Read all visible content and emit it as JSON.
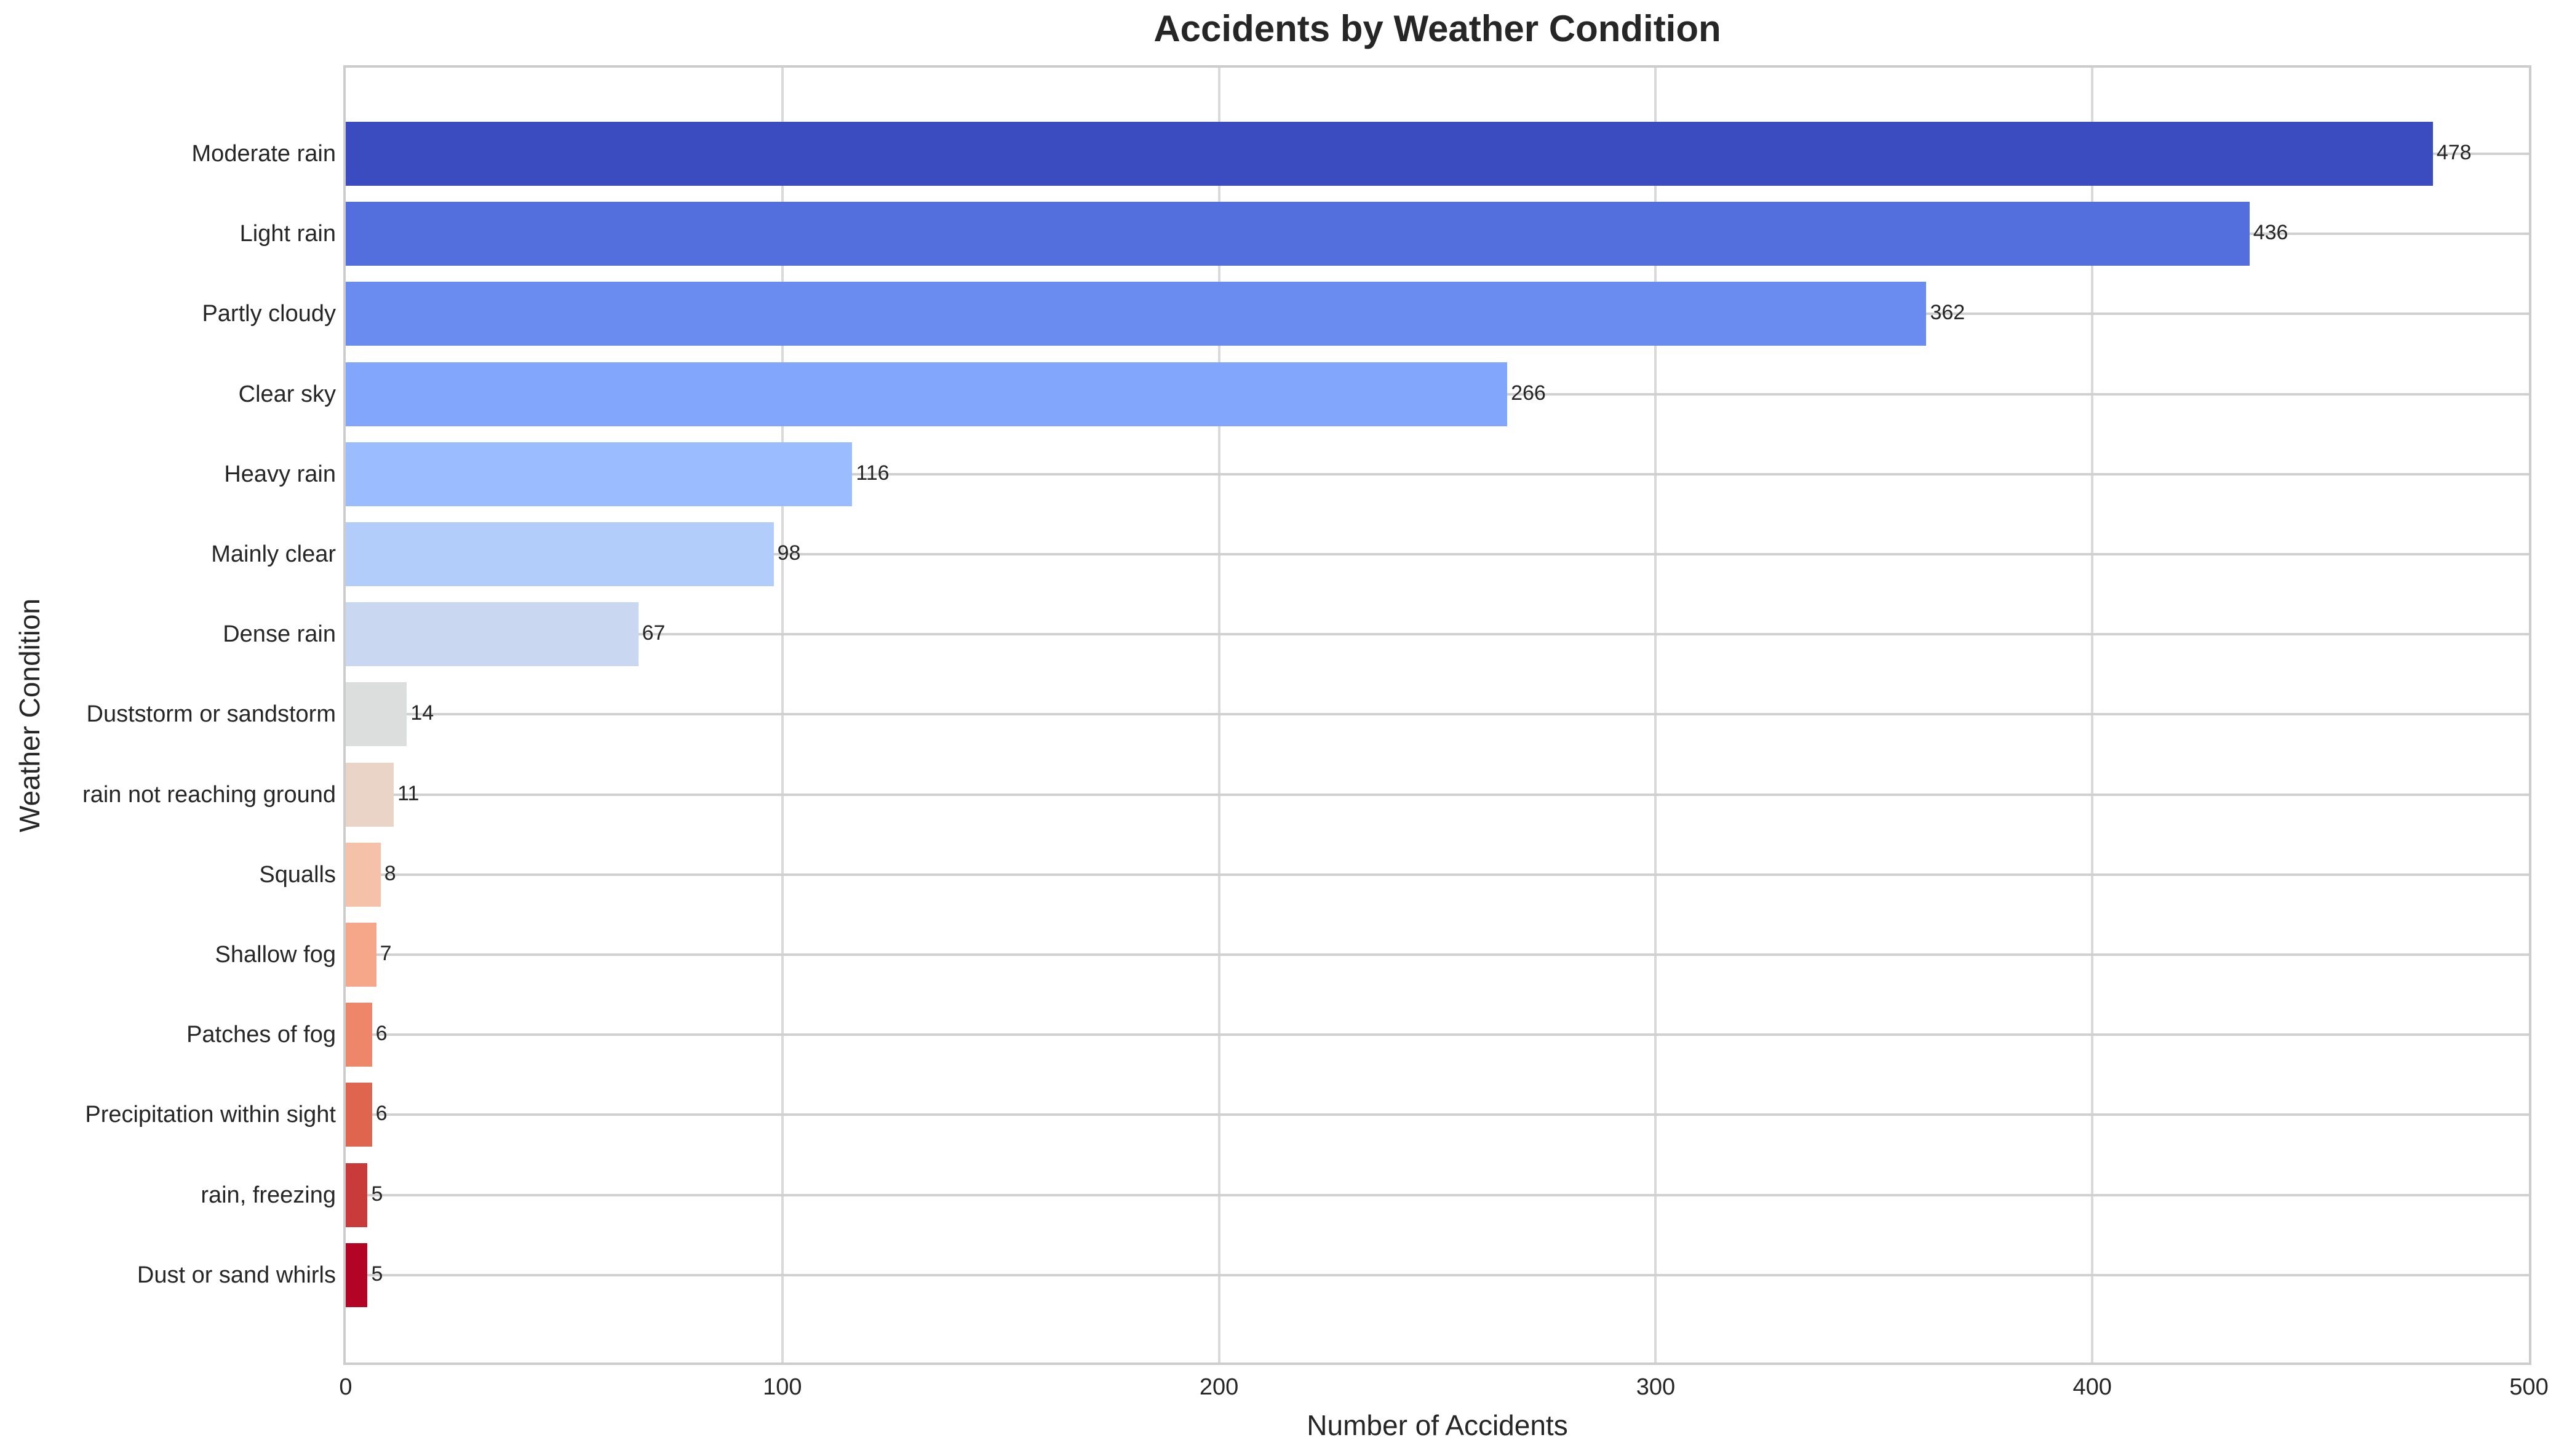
{
  "chart_data": {
    "type": "bar",
    "orientation": "horizontal",
    "title": "Accidents by Weather Condition",
    "xlabel": "Number of Accidents",
    "ylabel": "Weather Condition",
    "xlim": [
      0,
      500
    ],
    "xticks": [
      "0",
      "100",
      "200",
      "300",
      "400",
      "500"
    ],
    "grid": true,
    "categories": [
      "Moderate rain",
      "Light rain",
      "Partly cloudy",
      "Clear sky",
      "Heavy rain",
      "Mainly clear",
      "Dense rain",
      "Duststorm or sandstorm",
      "rain not reaching ground",
      "Squalls",
      "Shallow fog",
      "Patches of fog",
      "Precipitation within sight",
      "rain, freezing",
      "Dust or sand whirls"
    ],
    "values": [
      478,
      436,
      362,
      266,
      116,
      98,
      67,
      14,
      11,
      8,
      7,
      6,
      6,
      5,
      5
    ],
    "value_labels": [
      "478",
      "436",
      "362",
      "266",
      "116",
      "98",
      "67",
      "14",
      "11",
      "8",
      "7",
      "6",
      "6",
      "5",
      "5"
    ],
    "colors": [
      "#3b4cc0",
      "#536edd",
      "#6a8bef",
      "#82a6fb",
      "#9bbcff",
      "#b3cdfb",
      "#c9d7f0",
      "#dcdddd",
      "#ead4c8",
      "#f5c1a9",
      "#f6a789",
      "#ee8669",
      "#e0654f",
      "#c93b3a",
      "#b40426"
    ],
    "colormap": "coolwarm"
  }
}
